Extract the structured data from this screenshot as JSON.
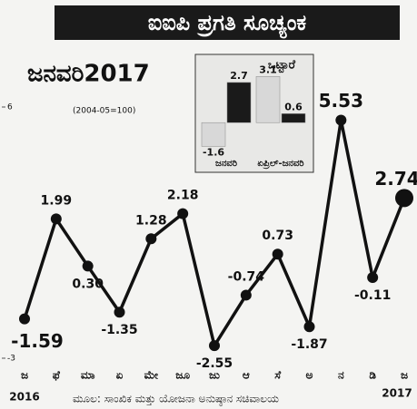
{
  "chart_data": [
    {
      "type": "line",
      "title": "ಐಐಪಿ ಪ್ರಗತಿ ಸೂಚ್ಯಂಕ",
      "subtitle": "ಜನವರಿ2017",
      "note": "(2004-05=100)",
      "categories": [
        "ಜ",
        "ಫೆ",
        "ಮಾ",
        "ಏ",
        "ಮೇ",
        "ಜೂ",
        "ಜು",
        "ಆ",
        "ಸೆ",
        "ಅ",
        "ನ",
        "ಡಿ",
        "ಜ"
      ],
      "year_labels": [
        "2016",
        "2017"
      ],
      "values": [
        -1.59,
        1.99,
        0.3,
        -1.35,
        1.28,
        2.18,
        -2.55,
        -0.74,
        0.73,
        -1.87,
        5.53,
        -0.11,
        2.74
      ],
      "value_labels": [
        "-1.59",
        "1.99",
        "0.30",
        "-1.35",
        "1.28",
        "2.18",
        "-2.55",
        "-0.74",
        "0.73",
        "-1.87",
        "5.53",
        "-0.11",
        "2.74"
      ],
      "color": "#111111",
      "ylim": [
        -3,
        6
      ],
      "yticks": [
        6,
        -3
      ],
      "source": "ಮೂಲ: ಸಾಂಖಿಕ ಮತ್ತು ಯೋಜನಾ ಅನುಷ್ಠಾನ ಸಚಿವಾಲಯ"
    },
    {
      "type": "bar",
      "title": "ಒಟ್ಟಾರೆ",
      "categories": [
        "ಜನವರಿ",
        "ಏಪ್ರಿಲ್-ಜನವರಿ"
      ],
      "series": [
        {
          "color": "#d8d8d8",
          "values": [
            -1.6,
            3.1
          ]
        },
        {
          "color": "#1a1a1a",
          "values": [
            2.7,
            0.6
          ]
        }
      ],
      "ylim": [
        -2,
        3
      ]
    }
  ]
}
